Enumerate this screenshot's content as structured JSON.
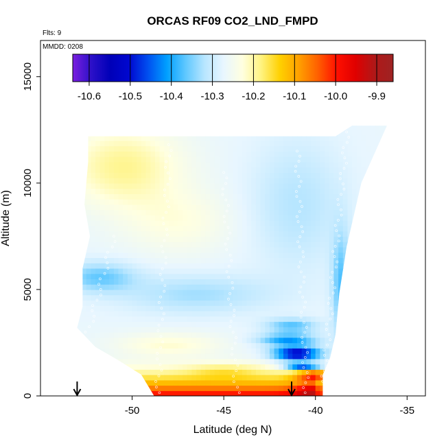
{
  "chart_data": {
    "type": "heatmap",
    "title": "ORCAS RF09 CO2_LND_FMPD",
    "xlabel": "Latitude (deg N)",
    "ylabel": "Altitude (m)",
    "annotations": {
      "flights": "Flts: 9",
      "date": "MMDD: 0208"
    },
    "xlim": [
      -55,
      -34
    ],
    "ylim": [
      0,
      16700
    ],
    "x_ticks": [
      -50,
      -45,
      -40,
      -35
    ],
    "x_tick_labels": [
      "-50",
      "-45",
      "-40",
      "-35"
    ],
    "y_ticks": [
      0,
      5000,
      10000,
      15000
    ],
    "y_tick_labels": [
      "0",
      "5000",
      "10000",
      "15000"
    ],
    "colorbar": {
      "range": [
        -10.64,
        -9.86
      ],
      "ticks": [
        -10.6,
        -10.5,
        -10.4,
        -10.3,
        -10.2,
        -10.1,
        -10.0,
        -9.9
      ],
      "tick_labels": [
        "-10.6",
        "-10.5",
        "-10.4",
        "-10.3",
        "-10.2",
        "-10.1",
        "-10.0",
        "-9.9"
      ],
      "colors": [
        "#7b1fe0",
        "#2b10c8",
        "#0000b8",
        "#0008d0",
        "#0050f0",
        "#00a0ff",
        "#60c8ff",
        "#b8e6ff",
        "#e8f6ff",
        "#ffffe0",
        "#fff380",
        "#ffd000",
        "#ffa000",
        "#ff6000",
        "#ff1000",
        "#e00000",
        "#b01818",
        "#9e2323"
      ]
    },
    "arrows_lat": [
      -53,
      -41.3
    ],
    "domain_polygon": [
      [
        -52.4,
        12200
      ],
      [
        -38.9,
        12200
      ],
      [
        -38.0,
        12700
      ],
      [
        -36.1,
        12700
      ],
      [
        -37.5,
        10000
      ],
      [
        -38.3,
        7000
      ],
      [
        -38.7,
        4800
      ],
      [
        -38.9,
        2900
      ],
      [
        -39.2,
        1800
      ],
      [
        -39.6,
        1000
      ],
      [
        -39.6,
        0
      ],
      [
        -48.8,
        0
      ],
      [
        -49.5,
        1000
      ],
      [
        -50.8,
        1700
      ],
      [
        -52.0,
        2300
      ],
      [
        -53.0,
        3200
      ],
      [
        -52.7,
        4200
      ],
      [
        -52.7,
        6000
      ],
      [
        -52.3,
        7500
      ],
      [
        -52.6,
        9000
      ],
      [
        -52.4,
        11000
      ]
    ],
    "field_regions": [
      {
        "name": "upper-background",
        "value": -10.27
      },
      {
        "name": "upper-left-yellow",
        "lat": -50.5,
        "alt": 10800,
        "value": -10.18
      },
      {
        "name": "mid-light-blue-band",
        "lat": -51.5,
        "alt": 5600,
        "value": -10.36
      },
      {
        "name": "boundary-layer-warm",
        "lat": -44,
        "alt": 500,
        "value": -10.0
      },
      {
        "name": "low-deep-blue-core",
        "lat": -41,
        "alt": 2000,
        "value": -10.5
      }
    ]
  }
}
